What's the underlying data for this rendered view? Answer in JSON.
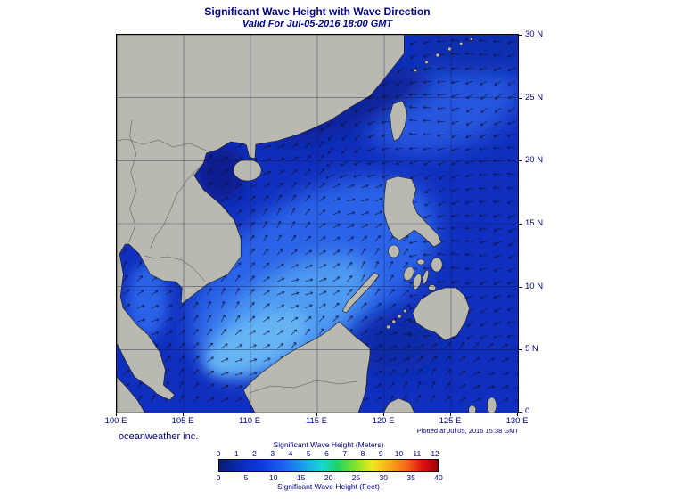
{
  "title": "Significant Wave Height with Wave Direction",
  "subtitle": "Valid For Jul-05-2016 18:00 GMT",
  "footer": {
    "credit": "oceanweather inc.",
    "plotted": "Plotted at Jul 05, 2016 15:38 GMT"
  },
  "map": {
    "lon_labels": [
      "100 E",
      "105 E",
      "110 E",
      "115 E",
      "120 E",
      "125 E",
      "130 E"
    ],
    "lat_labels": [
      "30 N",
      "25 N",
      "20 N",
      "15 N",
      "10 N",
      "5 N",
      "0"
    ]
  },
  "colorbar": {
    "meters_title": "Significant Wave Height (Meters)",
    "feet_title": "Significant Wave Height (Feet)",
    "meters_ticks": [
      "0",
      "1",
      "2",
      "3",
      "4",
      "5",
      "6",
      "7",
      "8",
      "9",
      "10",
      "11",
      "12"
    ],
    "feet_ticks": [
      "0",
      "5",
      "10",
      "15",
      "20",
      "25",
      "30",
      "35",
      "40"
    ],
    "gradient_stops": [
      "#071c74 0%",
      "#0a2bbb 10%",
      "#0d3ce0 20%",
      "#1e64f0 30%",
      "#18a8e8 40%",
      "#16d8d0 47%",
      "#20d268 54%",
      "#7de22a 62%",
      "#f2e71e 70%",
      "#f7a81b 78%",
      "#f4641a 86%",
      "#e01010 93%",
      "#9c0404 100%"
    ]
  },
  "colors": {
    "text": "#00008b",
    "frame": "#000000",
    "land": "#b9b9b1",
    "ocean_base": "#102fbe",
    "arrows": "#101035"
  }
}
